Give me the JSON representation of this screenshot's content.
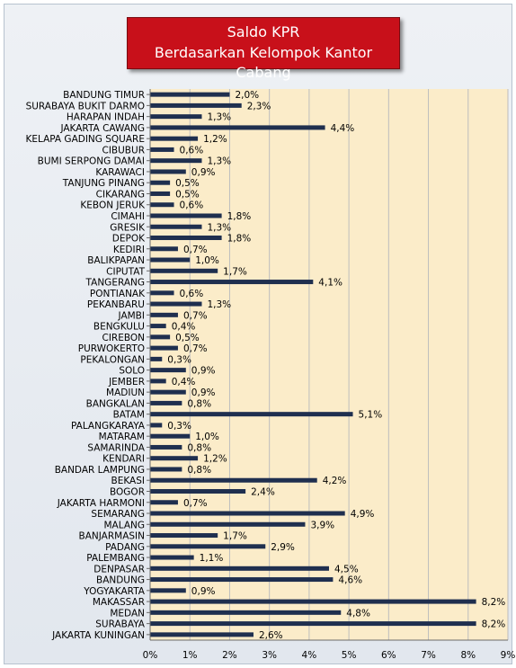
{
  "chart_data": {
    "type": "bar",
    "orientation": "horizontal",
    "title": "Saldo KPR",
    "subtitle": "Berdasarkan Kelompok Kantor Cabang",
    "xlim": [
      0,
      9
    ],
    "x_ticks": [
      "0%",
      "1%",
      "2%",
      "3%",
      "4%",
      "5%",
      "6%",
      "7%",
      "8%",
      "9%"
    ],
    "grid": "vertical",
    "bar_color": "#1f2f4f",
    "plot_background": "#fbecc9",
    "categories": [
      "BANDUNG TIMUR",
      "SURABAYA BUKIT DARMO",
      "HARAPAN INDAH",
      "JAKARTA CAWANG",
      "KELAPA GADING SQUARE",
      "CIBUBUR",
      "BUMI SERPONG DAMAI",
      "KARAWACI",
      "TANJUNG PINANG",
      "CIKARANG",
      "KEBON JERUK",
      "CIMAHI",
      "GRESIK",
      "DEPOK",
      "KEDIRI",
      "BALIKPAPAN",
      "CIPUTAT",
      "TANGERANG",
      "PONTIANAK",
      "PEKANBARU",
      "JAMBI",
      "BENGKULU",
      "CIREBON",
      "PURWOKERTO",
      "PEKALONGAN",
      "SOLO",
      "JEMBER",
      "MADIUN",
      "BANGKALAN",
      "BATAM",
      "PALANGKARAYA",
      "MATARAM",
      "SAMARINDA",
      "KENDARI",
      "BANDAR LAMPUNG",
      "BEKASI",
      "BOGOR",
      "JAKARTA HARMONI",
      "SEMARANG",
      "MALANG",
      "BANJARMASIN",
      "PADANG",
      "PALEMBANG",
      "DENPASAR",
      "BANDUNG",
      "YOGYAKARTA",
      "MAKASSAR",
      "MEDAN",
      "SURABAYA",
      "JAKARTA KUNINGAN"
    ],
    "values": [
      2.0,
      2.3,
      1.3,
      4.4,
      1.2,
      0.6,
      1.3,
      0.9,
      0.5,
      0.5,
      0.6,
      1.8,
      1.3,
      1.8,
      0.7,
      1.0,
      1.7,
      4.1,
      0.6,
      1.3,
      0.7,
      0.4,
      0.5,
      0.7,
      0.3,
      0.9,
      0.4,
      0.9,
      0.8,
      5.1,
      0.3,
      1.0,
      0.8,
      1.2,
      0.8,
      4.2,
      2.4,
      0.7,
      4.9,
      3.9,
      1.7,
      2.9,
      1.1,
      4.5,
      4.6,
      0.9,
      8.2,
      4.8,
      8.2,
      2.6
    ],
    "value_labels": [
      "2,0%",
      "2,3%",
      "1,3%",
      "4,4%",
      "1,2%",
      "0,6%",
      "1,3%",
      "0,9%",
      "0,5%",
      "0,5%",
      "0,6%",
      "1,8%",
      "1,3%",
      "1,8%",
      "0,7%",
      "1,0%",
      "1,7%",
      "4,1%",
      "0,6%",
      "1,3%",
      "0,7%",
      "0,4%",
      "0,5%",
      "0,7%",
      "0,3%",
      "0,9%",
      "0,4%",
      "0,9%",
      "0,8%",
      "5,1%",
      "0,3%",
      "1,0%",
      "0,8%",
      "1,2%",
      "0,8%",
      "4,2%",
      "2,4%",
      "0,7%",
      "4,9%",
      "3,9%",
      "1,7%",
      "2,9%",
      "1,1%",
      "4,5%",
      "4,6%",
      "0,9%",
      "8,2%",
      "4,8%",
      "8,2%",
      "2,6%"
    ]
  }
}
